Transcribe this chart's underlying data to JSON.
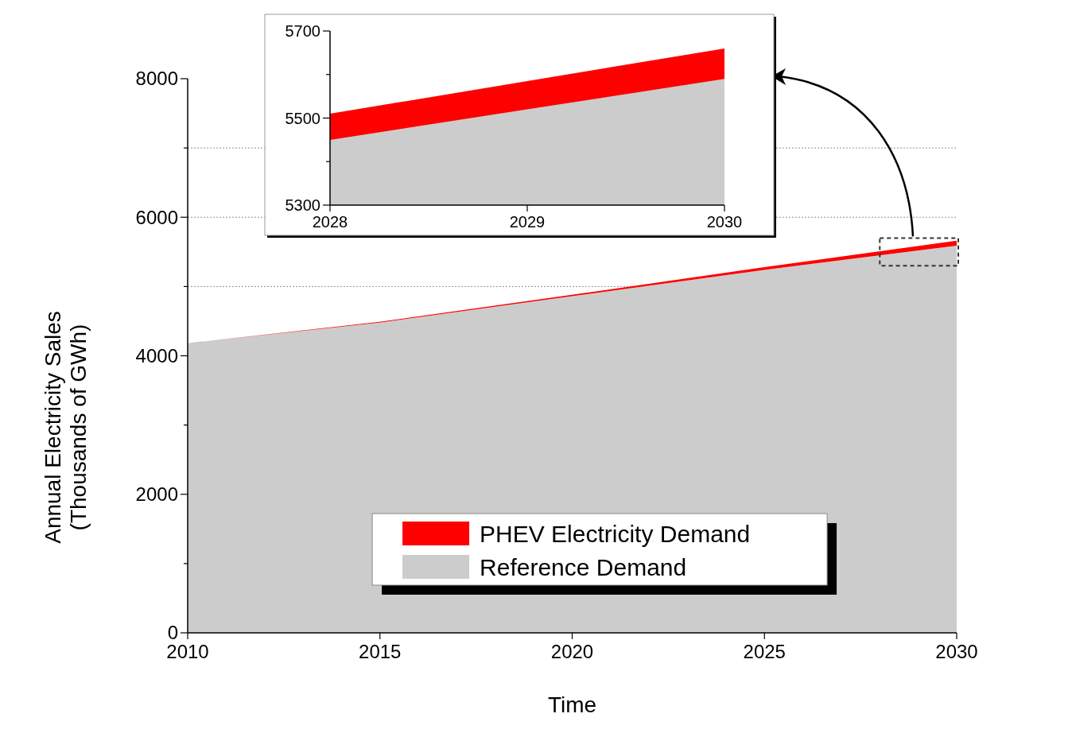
{
  "chart_data": [
    {
      "type": "area",
      "stacked": true,
      "xlabel": "Time",
      "ylabel": "Annual Electricity Sales\n(Thousands of GWh)",
      "x": [
        2010,
        2015,
        2020,
        2025,
        2030
      ],
      "xlim": [
        2010,
        2030
      ],
      "xticks": [
        2010,
        2015,
        2020,
        2025,
        2030
      ],
      "ylim": [
        0,
        8000
      ],
      "yticks": [
        0,
        {
          "value": 1000,
          "label": null
        },
        2000,
        {
          "value": 3000,
          "label": null
        },
        4000,
        {
          "value": 5000,
          "label": null
        },
        6000,
        {
          "value": 7000,
          "label": null
        },
        8000
      ],
      "grid": "y",
      "legend": "bottom",
      "series": [
        {
          "name": "Reference Demand",
          "color": "#cccccc",
          "values": [
            4180,
            4480,
            4860,
            5240,
            5590
          ]
        },
        {
          "name": "PHEV Electricity Demand",
          "color": "#ff0000",
          "values": [
            0,
            10,
            20,
            40,
            70
          ]
        }
      ]
    },
    {
      "type": "area",
      "x": [
        2028,
        2029,
        2030
      ],
      "xlim": [
        2028,
        2030
      ],
      "xticks": [
        2028,
        2029,
        2030
      ],
      "ylim": [
        5300,
        5700
      ],
      "yticks": [
        5300,
        {
          "value": 5400,
          "label": null
        },
        5500,
        {
          "value": 5600,
          "label": null
        },
        5700
      ],
      "grid": false,
      "legend": false,
      "series": [
        {
          "color": "#ff0000",
          "values": [
            5510,
            5585,
            5660
          ]
        },
        {
          "color": "#cccccc",
          "values": [
            5450,
            5520,
            5590
          ]
        }
      ]
    }
  ]
}
